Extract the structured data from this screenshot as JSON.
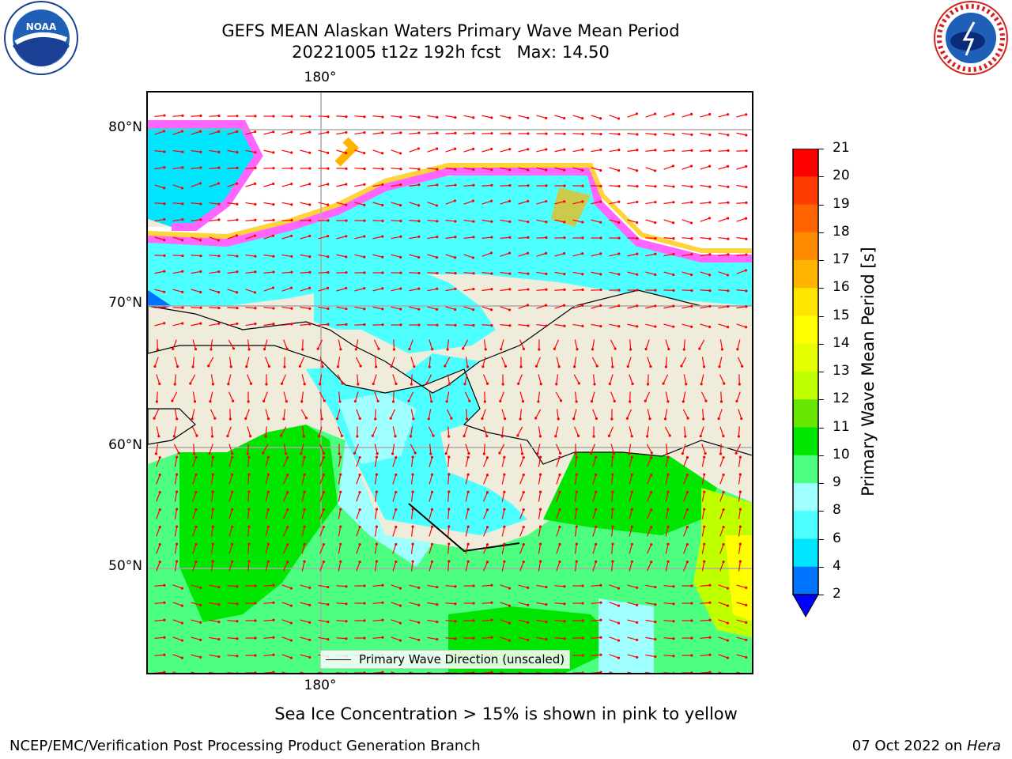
{
  "title": {
    "line1": "GEFS MEAN Alaskan Waters Primary Wave Mean Period",
    "line2": "20221005 t12z 192h fcst   Max: 14.50"
  },
  "axes": {
    "lat_labels": [
      "80°N",
      "70°N",
      "60°N",
      "50°N"
    ],
    "lon_top": "180°",
    "lon_bottom": "180°"
  },
  "legend": {
    "label": "Primary Wave Direction (unscaled)"
  },
  "colorbar": {
    "label": "Primary Wave Mean Period [s]",
    "ticks": [
      "2",
      "4",
      "6",
      "8",
      "9",
      "10",
      "11",
      "12",
      "13",
      "14",
      "15",
      "16",
      "17",
      "18",
      "19",
      "20",
      "21"
    ],
    "colors": [
      "#0073ff",
      "#00e6ff",
      "#4dffff",
      "#a0ffff",
      "#4dff80",
      "#00e600",
      "#66e600",
      "#c0ff00",
      "#e6ff00",
      "#ffff00",
      "#ffe600",
      "#ffb400",
      "#ff8c00",
      "#ff6400",
      "#ff3c00",
      "#ff0000"
    ]
  },
  "ice_note": "Sea Ice Concentration > 15% is shown in pink to yellow",
  "footer": {
    "left": "NCEP/EMC/Verification Post Processing Product Generation Branch",
    "right_date": "07 Oct 2022 on ",
    "right_host": "Hera"
  },
  "logos": {
    "left": "NOAA",
    "right": "NATIONAL WEATHER SERVICE"
  }
}
